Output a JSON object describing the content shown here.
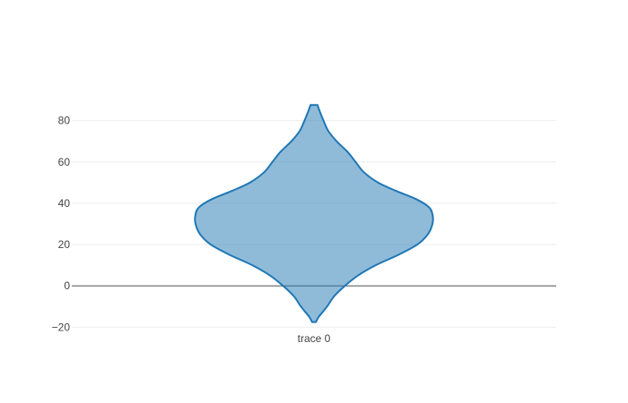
{
  "chart_data": {
    "type": "violin",
    "title": "",
    "xlabel": "",
    "ylabel": "",
    "categories": [
      "trace 0"
    ],
    "ylim": [
      -22,
      95
    ],
    "yticks": [
      -20,
      0,
      20,
      40,
      60,
      80
    ],
    "ytick_labels": [
      "−20",
      "0",
      "20",
      "40",
      "60",
      "80"
    ],
    "grid": true,
    "zero_line": true,
    "colors": {
      "fill": "#1f77b4",
      "fill_opacity": 0.5,
      "line": "#1f77b4",
      "grid": "#eeeeee",
      "zero_line": "#444444"
    },
    "series": [
      {
        "category": "trace 0",
        "density_profile": [
          {
            "y": -17.5,
            "w": 0.016
          },
          {
            "y": -15,
            "w": 0.04
          },
          {
            "y": -10,
            "w": 0.11
          },
          {
            "y": -5,
            "w": 0.17
          },
          {
            "y": 0,
            "w": 0.26
          },
          {
            "y": 5,
            "w": 0.37
          },
          {
            "y": 10,
            "w": 0.52
          },
          {
            "y": 15,
            "w": 0.71
          },
          {
            "y": 20,
            "w": 0.87
          },
          {
            "y": 25,
            "w": 0.96
          },
          {
            "y": 30,
            "w": 0.998
          },
          {
            "y": 34,
            "w": 1.0
          },
          {
            "y": 38,
            "w": 0.97
          },
          {
            "y": 42,
            "w": 0.86
          },
          {
            "y": 46,
            "w": 0.69
          },
          {
            "y": 50,
            "w": 0.54
          },
          {
            "y": 55,
            "w": 0.42
          },
          {
            "y": 60,
            "w": 0.35
          },
          {
            "y": 65,
            "w": 0.28
          },
          {
            "y": 70,
            "w": 0.19
          },
          {
            "y": 75,
            "w": 0.12
          },
          {
            "y": 80,
            "w": 0.08
          },
          {
            "y": 85,
            "w": 0.045
          },
          {
            "y": 87.5,
            "w": 0.03
          }
        ]
      }
    ]
  }
}
